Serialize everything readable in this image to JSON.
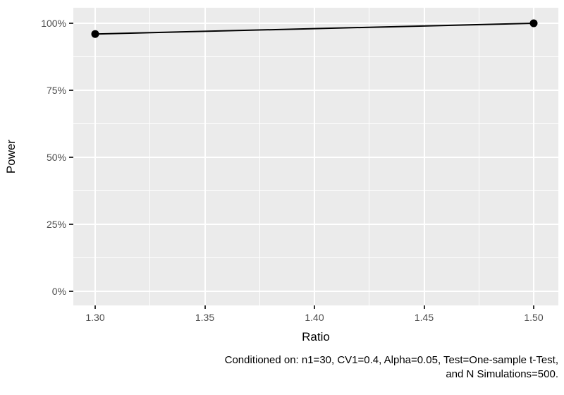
{
  "chart_data": {
    "type": "line",
    "title": "",
    "xlabel": "Ratio",
    "ylabel": "Power",
    "series": [
      {
        "name": "Power",
        "color": "#000000",
        "x": [
          1.3,
          1.5
        ],
        "y": [
          96,
          100
        ]
      }
    ],
    "xlim": [
      1.3,
      1.5
    ],
    "ylim": [
      0,
      100
    ],
    "x_ticks": {
      "values": [
        1.3,
        1.35,
        1.4,
        1.45,
        1.5
      ],
      "labels": [
        "1.30",
        "1.35",
        "1.40",
        "1.45",
        "1.50"
      ]
    },
    "y_ticks": {
      "values": [
        0,
        25,
        50,
        75,
        100
      ],
      "labels": [
        "0%",
        "25%",
        "50%",
        "75%",
        "100%"
      ]
    },
    "x_minor_ticks": [
      1.325,
      1.375,
      1.425,
      1.475
    ],
    "y_minor_ticks": [
      12.5,
      37.5,
      62.5,
      87.5
    ],
    "grid": "major and minor white gridlines on gray panel",
    "legend": "none",
    "caption": {
      "line1": "Conditioned on: n1=30, CV1=0.4, Alpha=0.05, Test=One-sample t-Test,",
      "line2": "and N Simulations=500."
    }
  },
  "colors": {
    "page_background": "#ffffff",
    "panel_background": "#ebebeb",
    "grid_major": "#ffffff",
    "grid_minor": "#ffffff",
    "series_line": "#000000",
    "point_fill": "#000000",
    "tick_mark": "#333333",
    "tick_label": "#4d4d4d",
    "axis_title": "#000000",
    "caption_text": "#000000"
  }
}
